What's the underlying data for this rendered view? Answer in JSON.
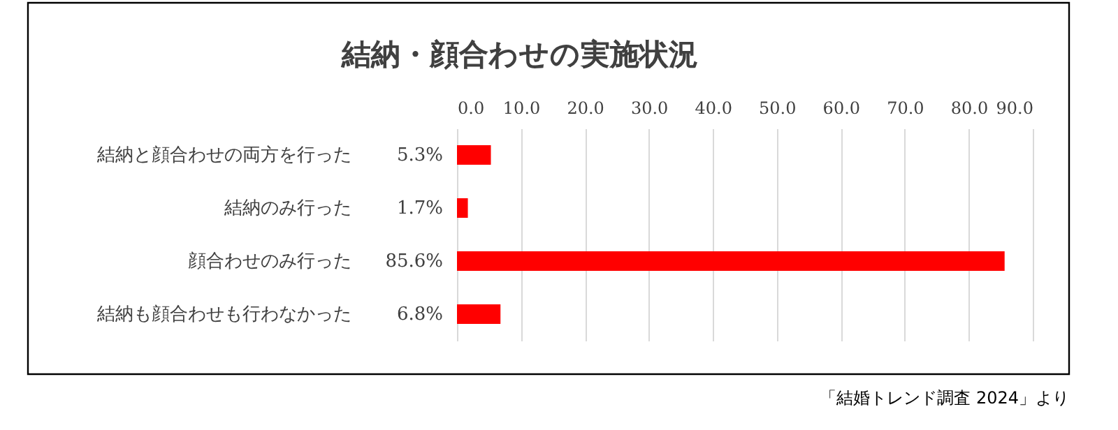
{
  "chart_data": {
    "type": "bar",
    "orientation": "horizontal",
    "title": "結納・顔合わせの実施状況",
    "categories": [
      "結納と顔合わせの両方を行った",
      "結納のみ行った",
      "顔合わせのみ行った",
      "結納も顔合わせも行わなかった"
    ],
    "values": [
      5.3,
      1.7,
      85.6,
      6.8
    ],
    "value_labels": [
      "5.3%",
      "1.7%",
      "85.6%",
      "6.8%"
    ],
    "color": "#ff0000",
    "xlim": [
      0,
      90
    ],
    "xticks": [
      {
        "value": 0,
        "label": "0.0"
      },
      {
        "value": 10,
        "label": "10.0"
      },
      {
        "value": 20,
        "label": "20.0"
      },
      {
        "value": 30,
        "label": "30.0"
      },
      {
        "value": 40,
        "label": "40.0"
      },
      {
        "value": 50,
        "label": "50.0"
      },
      {
        "value": 60,
        "label": "60.0"
      },
      {
        "value": 70,
        "label": "70.0"
      },
      {
        "value": 80,
        "label": "80.0"
      },
      {
        "value": 90,
        "label": "90.0"
      }
    ],
    "grid": "x",
    "annotations": [
      "「結婚トレンド調査 2024」より"
    ]
  }
}
